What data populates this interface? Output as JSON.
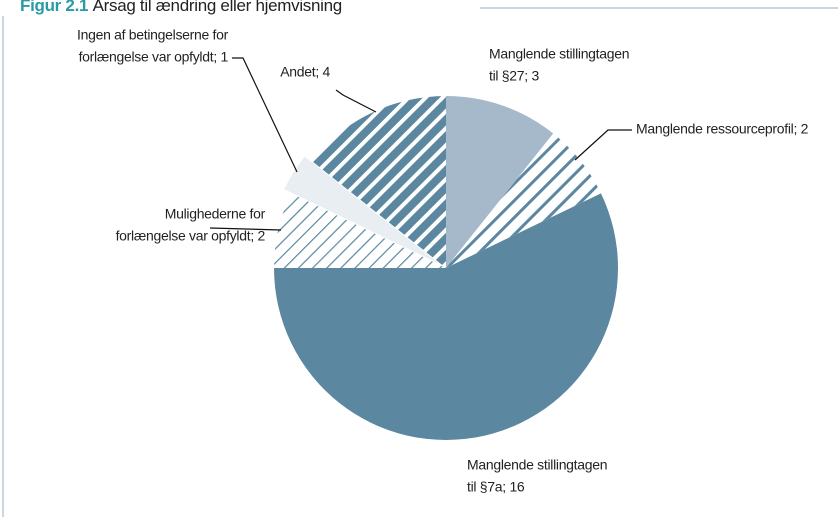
{
  "chart_data": {
    "type": "pie",
    "title_prefix": "Figur 2.1",
    "title": "Årsag til ændring eller hjemvisning",
    "labels": [
      [
        "Manglende stillingtagen",
        "til §27; 3"
      ],
      [
        "Manglende ressourceprofil; 2"
      ],
      [
        "Manglende stillingtagen",
        "til §7a; 16"
      ],
      [
        "Mulighederne for",
        "forlængelse var opfyldt; 2"
      ],
      [
        "Ingen af betingelserne for",
        "forlængelse var opfyldt; 1"
      ],
      [
        "Andet; 4"
      ]
    ],
    "values": [
      3,
      2,
      16,
      2,
      1,
      4
    ],
    "colors": [
      "#a5b9ca",
      "#5b87a0",
      "#5b87a0",
      "#5b87a0",
      "#e9eef3",
      "#5b87a0"
    ],
    "hatch": [
      null,
      "wide",
      null,
      "thin",
      null,
      "bold"
    ]
  }
}
